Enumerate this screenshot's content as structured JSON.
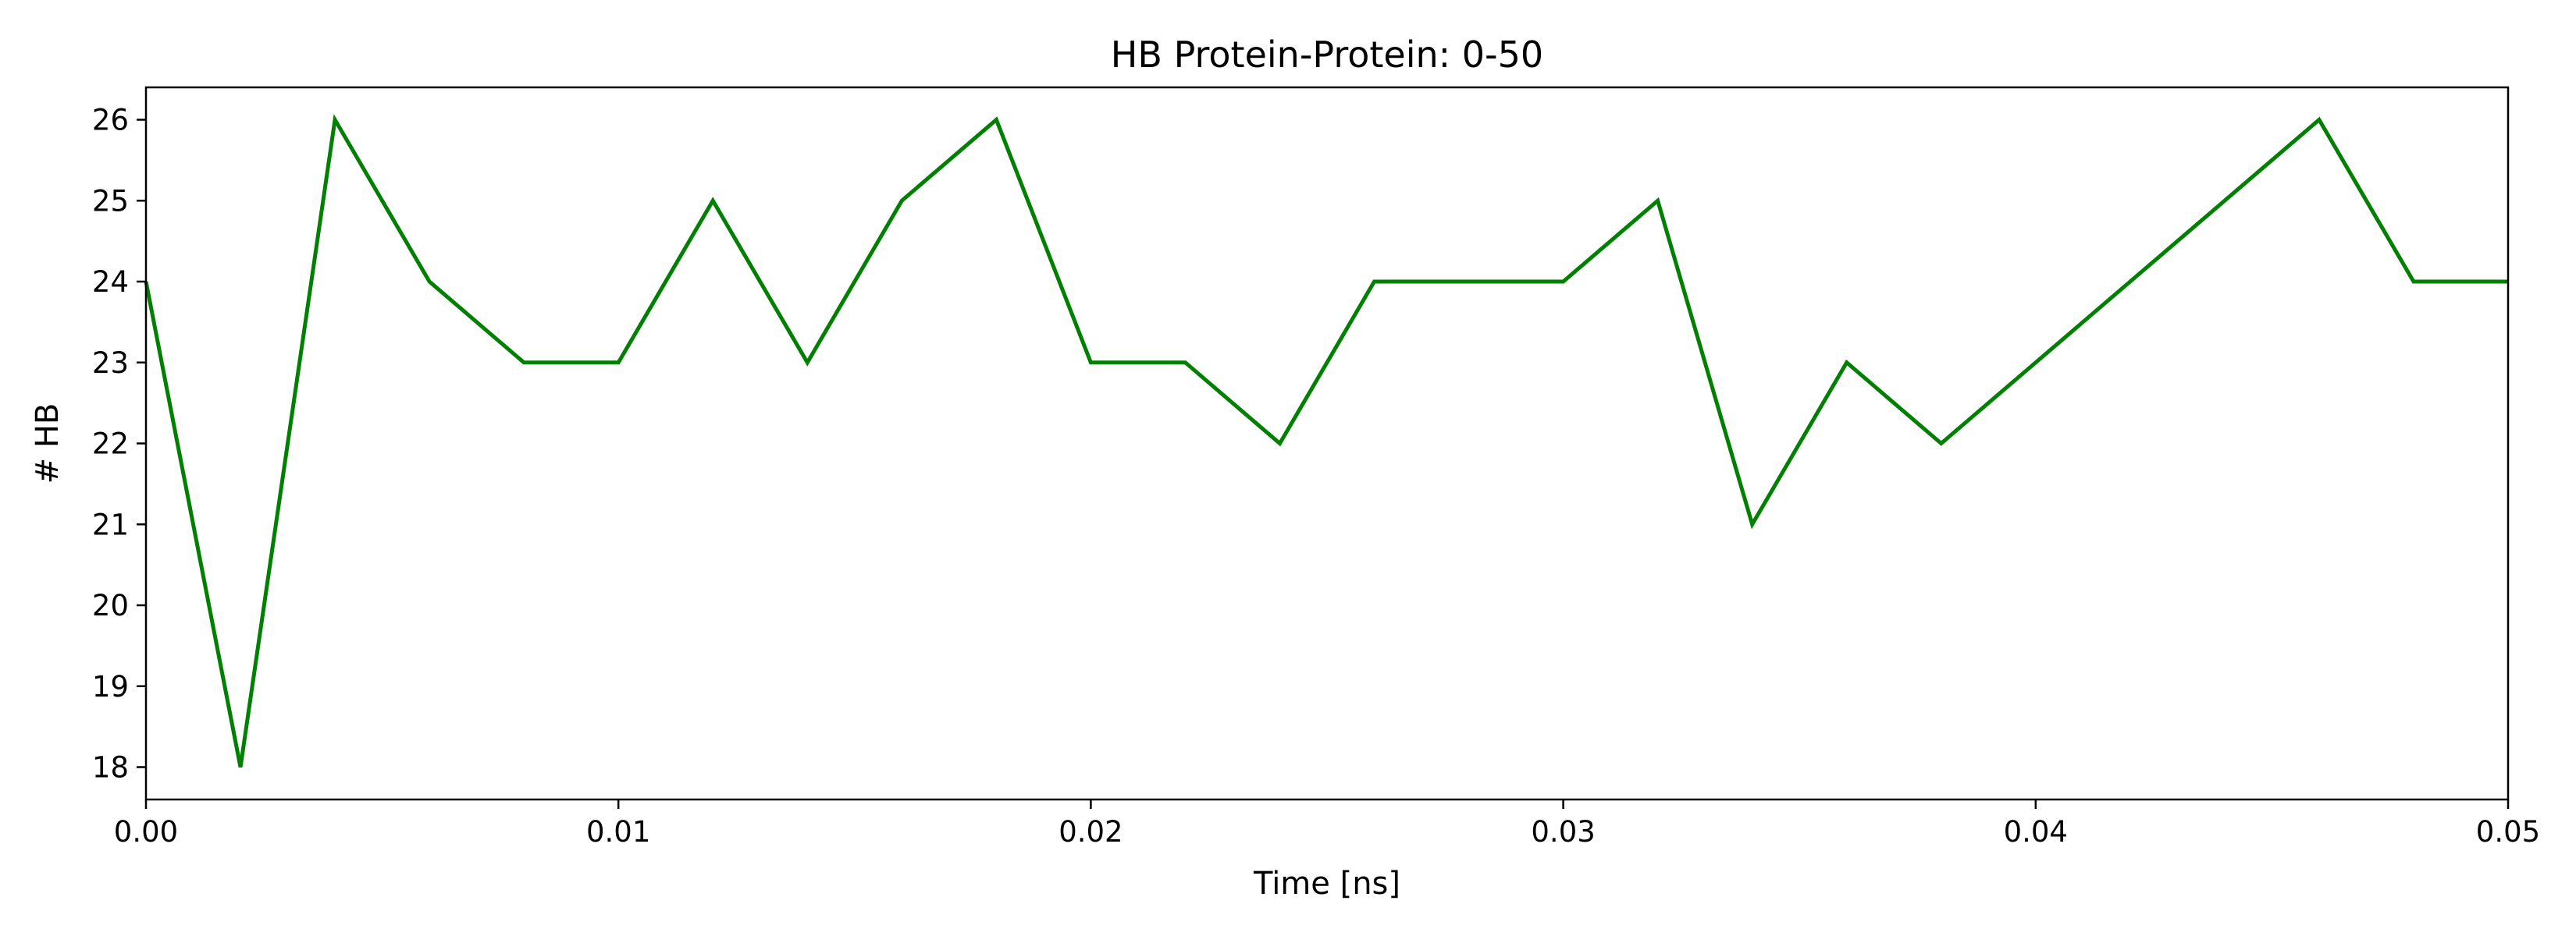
{
  "chart_data": {
    "type": "line",
    "title": "HB Protein-Protein: 0-50",
    "xlabel": "Time [ns]",
    "ylabel": "# HB",
    "xlim": [
      0.0,
      0.05
    ],
    "ylim": [
      17.6,
      26.4
    ],
    "xticks": [
      0.0,
      0.01,
      0.02,
      0.03,
      0.04,
      0.05
    ],
    "xtick_labels": [
      "0.00",
      "0.01",
      "0.02",
      "0.03",
      "0.04",
      "0.05"
    ],
    "yticks": [
      18,
      19,
      20,
      21,
      22,
      23,
      24,
      25,
      26
    ],
    "ytick_labels": [
      "18",
      "19",
      "20",
      "21",
      "22",
      "23",
      "24",
      "25",
      "26"
    ],
    "grid": false,
    "legend": false,
    "series": [
      {
        "color": "#008000",
        "x": [
          0.0,
          0.002,
          0.004,
          0.006,
          0.008,
          0.01,
          0.012,
          0.014,
          0.016,
          0.018,
          0.02,
          0.022,
          0.024,
          0.026,
          0.028,
          0.03,
          0.032,
          0.034,
          0.036,
          0.038,
          0.04,
          0.042,
          0.044,
          0.046,
          0.048,
          0.05
        ],
        "y": [
          24,
          18,
          26,
          24,
          23,
          23,
          25,
          23,
          25,
          26,
          23,
          23,
          22,
          24,
          24,
          24,
          25,
          21,
          23,
          22,
          23,
          24,
          25,
          26,
          24,
          24
        ]
      }
    ]
  }
}
